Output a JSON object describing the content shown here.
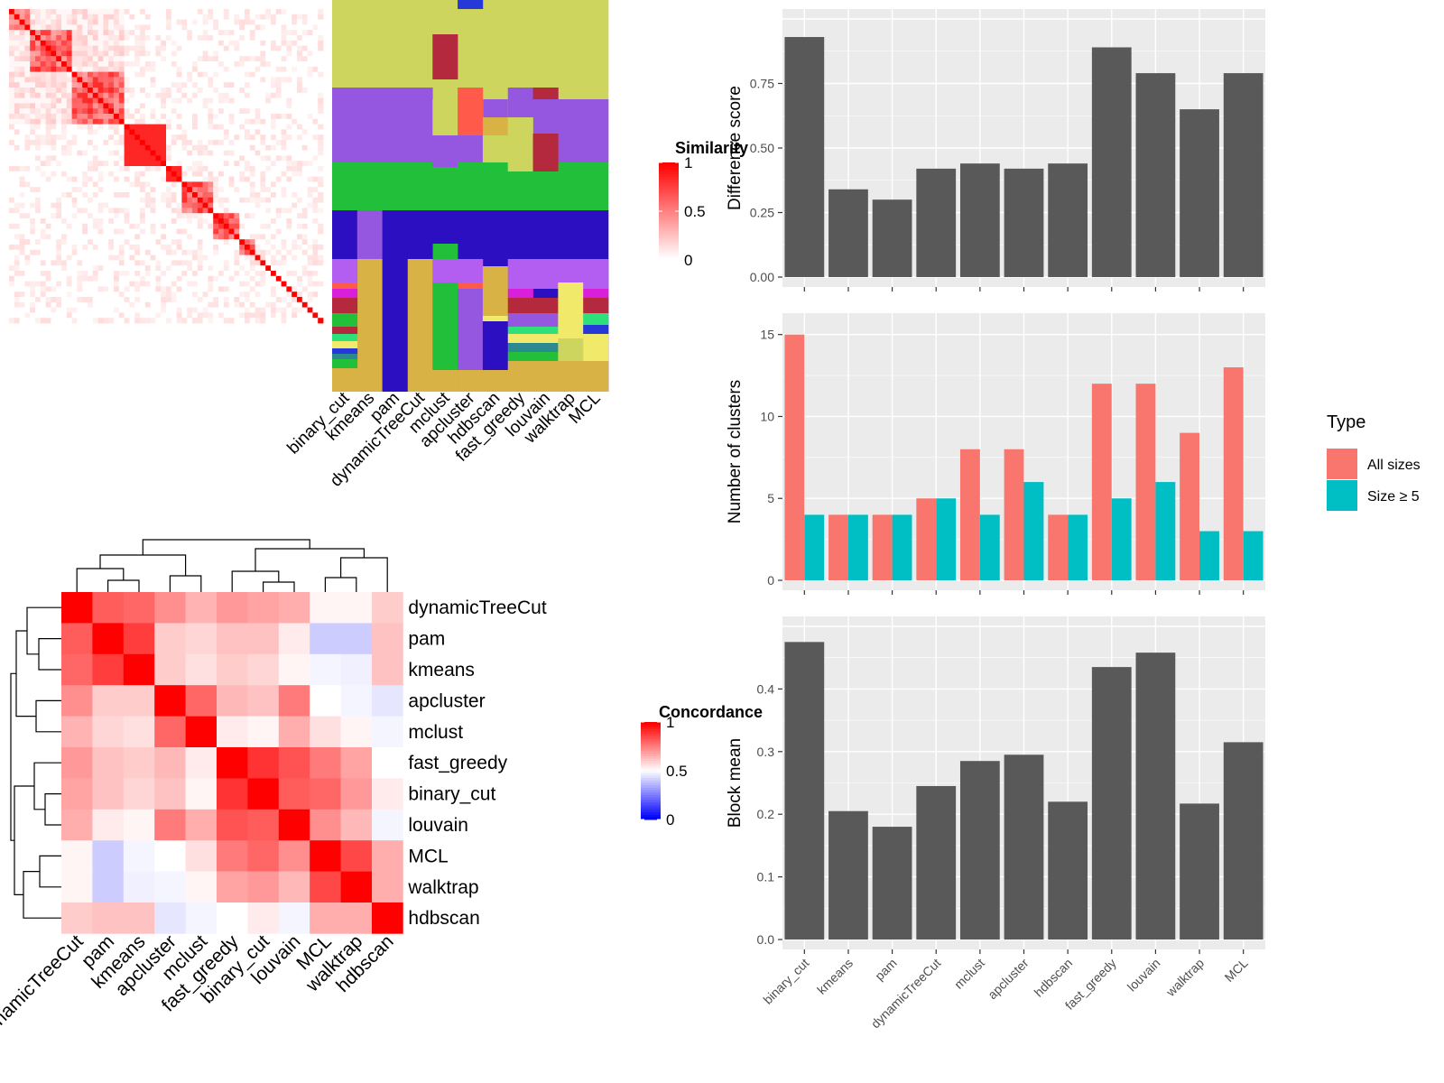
{
  "methods": [
    "binary_cut",
    "kmeans",
    "pam",
    "dynamicTreeCut",
    "mclust",
    "apcluster",
    "hdbscan",
    "fast_greedy",
    "louvain",
    "walktrap",
    "MCL"
  ],
  "similarity_legend": {
    "title": "Similarity",
    "ticks": [
      "1",
      "0.5",
      "0"
    ]
  },
  "concordance_legend": {
    "title": "Concordance",
    "ticks": [
      "1",
      "0.5",
      "0"
    ]
  },
  "heatmap_order": [
    "dynamicTreeCut",
    "pam",
    "kmeans",
    "apcluster",
    "mclust",
    "fast_greedy",
    "binary_cut",
    "louvain",
    "MCL",
    "walktrap",
    "hdbscan"
  ],
  "type_legend": {
    "title": "Type",
    "entries": [
      "All sizes",
      "Size ≥ 5"
    ]
  },
  "colors": {
    "panel": "#ebebeb",
    "bar": "#595959",
    "all_sizes": "#f8766d",
    "size5": "#00bfc4",
    "red": "#ff0000",
    "blue": "#0000ff"
  },
  "chart_data": [
    {
      "type": "heatmap",
      "title": "",
      "legend_title": "Similarity",
      "blocks": [
        "similarity matrix of 60 terms, clustered diagonal blocks"
      ],
      "scale": [
        0,
        1
      ]
    },
    {
      "type": "heatmap",
      "title": "",
      "xlabel": "",
      "columns": [
        "binary_cut",
        "kmeans",
        "pam",
        "dynamicTreeCut",
        "mclust",
        "apcluster",
        "hdbscan",
        "fast_greedy",
        "louvain",
        "walktrap",
        "MCL"
      ],
      "description": "cluster membership per method"
    },
    {
      "type": "heatmap",
      "legend_title": "Concordance",
      "rows": [
        "dynamicTreeCut",
        "pam",
        "kmeans",
        "apcluster",
        "mclust",
        "fast_greedy",
        "binary_cut",
        "louvain",
        "MCL",
        "walktrap",
        "hdbscan"
      ],
      "columns": [
        "dynamicTreeCut",
        "pam",
        "kmeans",
        "apcluster",
        "mclust",
        "fast_greedy",
        "binary_cut",
        "louvain",
        "MCL",
        "walktrap",
        "hdbscan"
      ],
      "values": [
        [
          1.0,
          0.82,
          0.8,
          0.72,
          0.65,
          0.7,
          0.68,
          0.66,
          0.52,
          0.52,
          0.6
        ],
        [
          0.82,
          1.0,
          0.88,
          0.6,
          0.58,
          0.62,
          0.62,
          0.54,
          0.4,
          0.4,
          0.62
        ],
        [
          0.8,
          0.88,
          1.0,
          0.6,
          0.56,
          0.6,
          0.58,
          0.52,
          0.48,
          0.47,
          0.62
        ],
        [
          0.72,
          0.6,
          0.6,
          1.0,
          0.8,
          0.64,
          0.62,
          0.76,
          0.5,
          0.48,
          0.45
        ],
        [
          0.65,
          0.58,
          0.56,
          0.8,
          1.0,
          0.54,
          0.52,
          0.66,
          0.56,
          0.52,
          0.48
        ],
        [
          0.7,
          0.62,
          0.6,
          0.64,
          0.54,
          1.0,
          0.9,
          0.84,
          0.76,
          0.68,
          0.5
        ],
        [
          0.68,
          0.62,
          0.58,
          0.62,
          0.52,
          0.9,
          1.0,
          0.82,
          0.8,
          0.7,
          0.54
        ],
        [
          0.66,
          0.54,
          0.52,
          0.76,
          0.66,
          0.84,
          0.82,
          1.0,
          0.72,
          0.64,
          0.48
        ],
        [
          0.52,
          0.4,
          0.48,
          0.5,
          0.56,
          0.76,
          0.8,
          0.72,
          1.0,
          0.86,
          0.66
        ],
        [
          0.52,
          0.4,
          0.47,
          0.48,
          0.52,
          0.68,
          0.7,
          0.64,
          0.86,
          1.0,
          0.66
        ],
        [
          0.6,
          0.62,
          0.62,
          0.45,
          0.48,
          0.5,
          0.54,
          0.48,
          0.66,
          0.66,
          1.0
        ]
      ],
      "scale": [
        0,
        1
      ]
    },
    {
      "type": "bar",
      "categories": [
        "binary_cut",
        "kmeans",
        "pam",
        "dynamicTreeCut",
        "mclust",
        "apcluster",
        "hdbscan",
        "fast_greedy",
        "louvain",
        "walktrap",
        "MCL"
      ],
      "values": [
        0.93,
        0.34,
        0.3,
        0.42,
        0.44,
        0.42,
        0.44,
        0.89,
        0.79,
        0.65,
        0.79
      ],
      "ylabel": "Difference score",
      "ylim": [
        0,
        1.0
      ],
      "yticks": [
        "0.00",
        "0.25",
        "0.50",
        "0.75"
      ]
    },
    {
      "type": "bar",
      "categories": [
        "binary_cut",
        "kmeans",
        "pam",
        "dynamicTreeCut",
        "mclust",
        "apcluster",
        "hdbscan",
        "fast_greedy",
        "louvain",
        "walktrap",
        "MCL"
      ],
      "series": [
        {
          "name": "All sizes",
          "values": [
            15,
            4,
            4,
            5,
            8,
            8,
            4,
            12,
            12,
            9,
            13
          ]
        },
        {
          "name": "Size ≥ 5",
          "values": [
            4,
            4,
            4,
            5,
            4,
            6,
            4,
            5,
            6,
            3,
            3
          ]
        }
      ],
      "ylabel": "Number of clusters",
      "ylim": [
        0,
        15.7
      ],
      "yticks": [
        "0",
        "5",
        "10",
        "15"
      ],
      "legend": "right"
    },
    {
      "type": "bar",
      "categories": [
        "binary_cut",
        "kmeans",
        "pam",
        "dynamicTreeCut",
        "mclust",
        "apcluster",
        "hdbscan",
        "fast_greedy",
        "louvain",
        "walktrap",
        "MCL"
      ],
      "values": [
        0.475,
        0.205,
        0.18,
        0.245,
        0.285,
        0.295,
        0.22,
        0.435,
        0.458,
        0.217,
        0.315
      ],
      "ylabel": "Block mean",
      "ylim": [
        0,
        0.5
      ],
      "yticks": [
        "0.0",
        "0.1",
        "0.2",
        "0.3",
        "0.4"
      ]
    }
  ]
}
